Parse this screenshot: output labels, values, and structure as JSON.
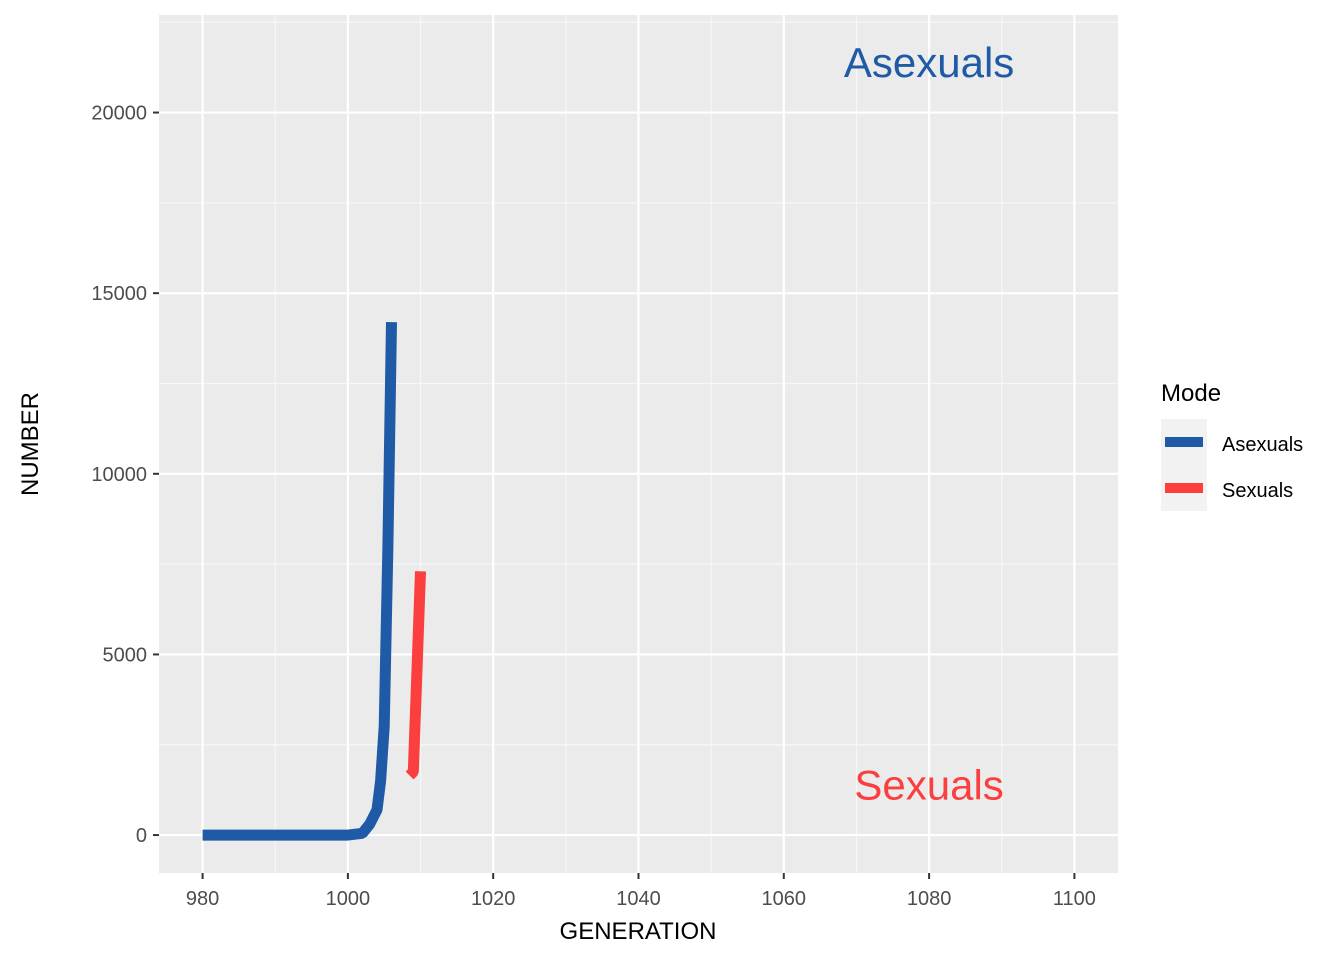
{
  "chart_data": {
    "type": "line",
    "xlabel": "GENERATION",
    "ylabel": "NUMBER",
    "xlim": [
      974,
      1106
    ],
    "ylim": [
      -1050,
      22700
    ],
    "x_ticks": [
      980,
      1000,
      1020,
      1040,
      1060,
      1080,
      1100
    ],
    "y_ticks": [
      0,
      5000,
      10000,
      15000,
      20000
    ],
    "x_tick_labels": [
      "980",
      "1000",
      "1020",
      "1040",
      "1060",
      "1080",
      "1100"
    ],
    "y_tick_labels": [
      "0",
      "5000",
      "10000",
      "15000",
      "20000"
    ],
    "grid": true,
    "legend": {
      "title": "Mode",
      "placement": "right",
      "entries": [
        "Asexuals",
        "Sexuals"
      ]
    },
    "series": [
      {
        "name": "Asexuals",
        "color": "#1f5aa6",
        "x": [
          980,
          990,
          1000,
          1002,
          1003,
          1004,
          1004.5,
          1005,
          1005.5,
          1006
        ],
        "y": [
          0,
          0,
          0,
          50,
          300,
          700,
          1500,
          3000,
          8000,
          14200
        ]
      },
      {
        "name": "Sexuals",
        "color": "#fb3e3e",
        "x": [
          1008.5,
          1009,
          1009.5,
          1010
        ],
        "y": [
          1650,
          1750,
          4500,
          7300
        ]
      }
    ],
    "annotations": [
      {
        "text": "Asexuals",
        "x": 1080,
        "y": 21400,
        "color": "#1f5aa6"
      },
      {
        "text": "Sexuals",
        "x": 1080,
        "y": 1400,
        "color": "#fb3e3e"
      }
    ]
  }
}
